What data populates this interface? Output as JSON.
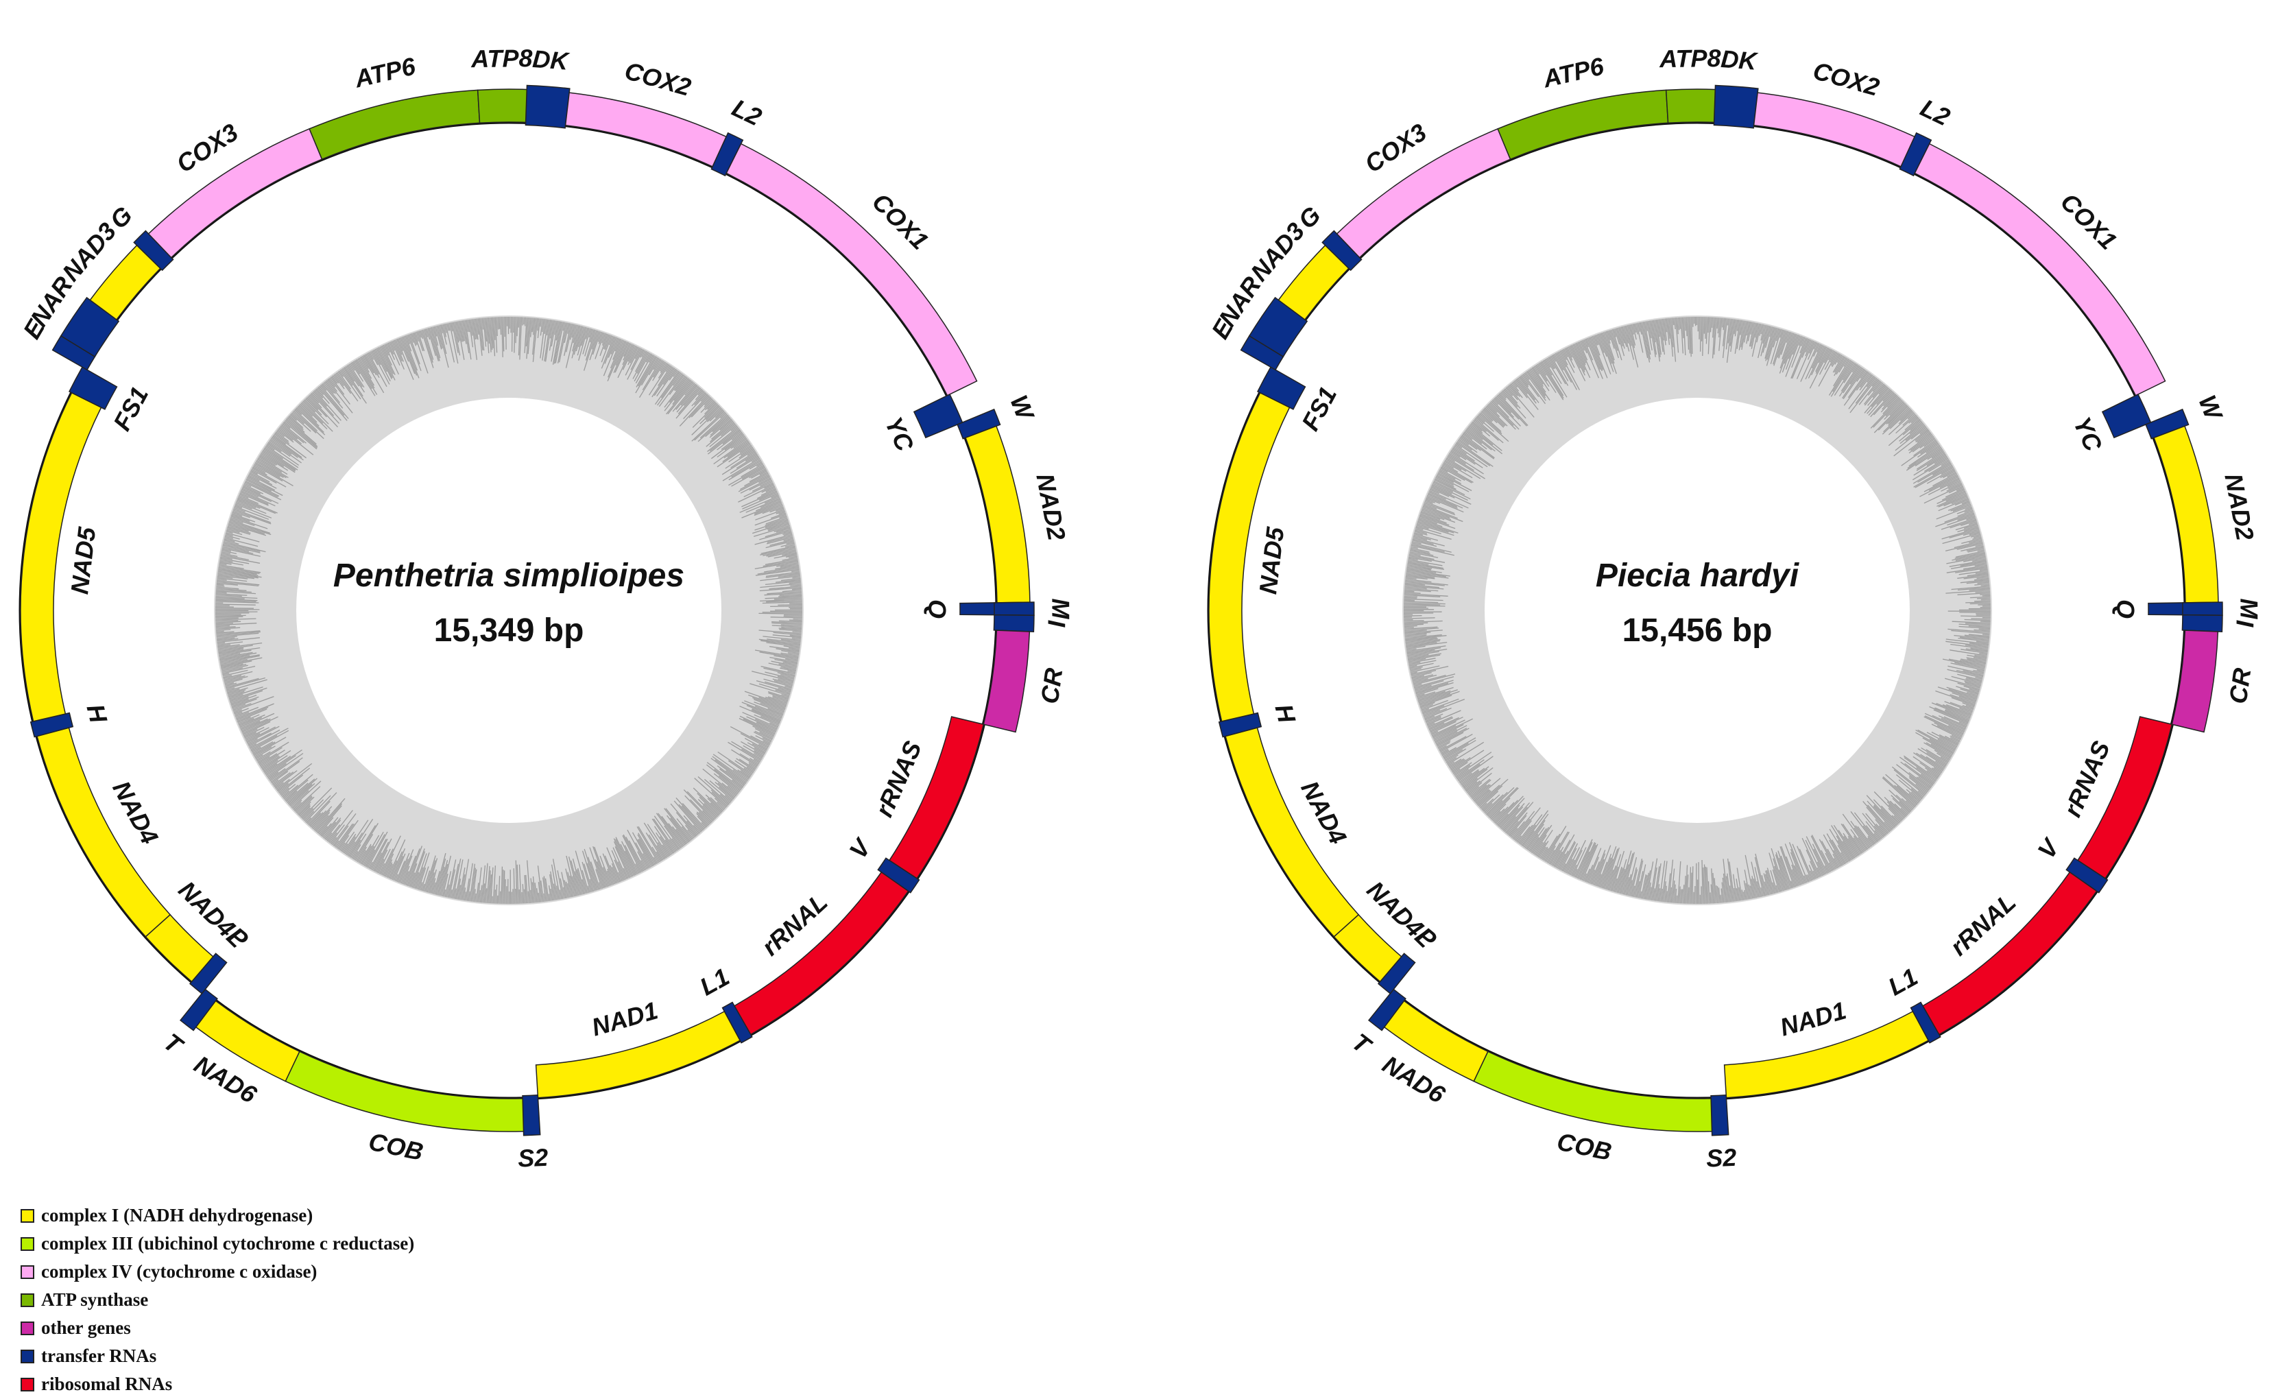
{
  "legend": [
    {
      "key": "c1",
      "label": "complex I (NADH dehydrogenase)",
      "color": "#ffee00"
    },
    {
      "key": "c3",
      "label": "complex III (ubichinol cytochrome c reductase)",
      "color": "#b8f000"
    },
    {
      "key": "c4",
      "label": "complex IV (cytochrome c oxidase)",
      "color": "#ffaaf2"
    },
    {
      "key": "atp",
      "label": "ATP synthase",
      "color": "#7ab800"
    },
    {
      "key": "other",
      "label": "other genes",
      "color": "#cc2aa6"
    },
    {
      "key": "trna",
      "label": "transfer RNAs",
      "color": "#0a2f8a"
    },
    {
      "key": "rrna",
      "label": "ribosomal RNAs",
      "color": "#ee0020"
    }
  ],
  "chart_data": {
    "type": "diagram",
    "description_free": true,
    "genomes": [
      {
        "id": "left",
        "species": "Penthetria  simplioipes",
        "length": "15,349 bp",
        "density": "a",
        "genes": [
          {
            "name": "DK",
            "type": "trna",
            "start": 0.0,
            "end": 0.013,
            "strand": "out",
            "label": "DK"
          },
          {
            "name": "COX2",
            "type": "c4",
            "start": 0.013,
            "end": 0.063,
            "strand": "out",
            "label": "COX2"
          },
          {
            "name": "L2",
            "type": "trna",
            "start": 0.063,
            "end": 0.068,
            "strand": "out",
            "label": "L2"
          },
          {
            "name": "COX1",
            "type": "c4",
            "start": 0.068,
            "end": 0.172,
            "strand": "out",
            "label": "COX1"
          },
          {
            "name": "YC",
            "type": "trna",
            "start": 0.172,
            "end": 0.182,
            "strand": "in",
            "label": "YC"
          },
          {
            "name": "W",
            "type": "trna",
            "start": 0.182,
            "end": 0.187,
            "strand": "out",
            "label": "W"
          },
          {
            "name": "NAD2",
            "type": "c1",
            "start": 0.187,
            "end": 0.242,
            "strand": "out",
            "label": "NAD2"
          },
          {
            "name": "Q",
            "type": "trna",
            "start": 0.242,
            "end": 0.246,
            "strand": "in",
            "label": "Q"
          },
          {
            "name": "M",
            "type": "trna",
            "start": 0.242,
            "end": 0.246,
            "strand": "out",
            "label": "M"
          },
          {
            "name": "I",
            "type": "trna",
            "start": 0.246,
            "end": 0.251,
            "strand": "out",
            "label": "I"
          },
          {
            "name": "CR",
            "type": "other",
            "start": 0.251,
            "end": 0.282,
            "strand": "out",
            "label": "CR"
          },
          {
            "name": "rRNAS",
            "type": "rrna",
            "start": 0.282,
            "end": 0.337,
            "strand": "in",
            "label": "rRNAS"
          },
          {
            "name": "V",
            "type": "trna",
            "start": 0.337,
            "end": 0.342,
            "strand": "in",
            "label": "V"
          },
          {
            "name": "rRNAL",
            "type": "rrna",
            "start": 0.342,
            "end": 0.412,
            "strand": "in",
            "label": "rRNAL"
          },
          {
            "name": "L1",
            "type": "trna",
            "start": 0.412,
            "end": 0.416,
            "strand": "in",
            "label": "L1"
          },
          {
            "name": "NAD1",
            "type": "c1",
            "start": 0.416,
            "end": 0.485,
            "strand": "in",
            "label": "NAD1"
          },
          {
            "name": "S2",
            "type": "trna",
            "start": 0.485,
            "end": 0.49,
            "strand": "out",
            "label": "S2"
          },
          {
            "name": "COB",
            "type": "c3",
            "start": 0.49,
            "end": 0.565,
            "strand": "out",
            "label": "COB"
          },
          {
            "name": "NAD6",
            "type": "c1",
            "start": 0.565,
            "end": 0.597,
            "strand": "out",
            "label": "NAD6"
          },
          {
            "name": "T",
            "type": "trna",
            "start": 0.597,
            "end": 0.602,
            "strand": "out",
            "label": "T"
          },
          {
            "name": "P",
            "type": "trna",
            "start": 0.602,
            "end": 0.607,
            "strand": "in",
            "label": "P"
          },
          {
            "name": "NAD4L",
            "type": "c1",
            "start": 0.607,
            "end": 0.628,
            "strand": "in",
            "label": "NAD4L"
          },
          {
            "name": "NAD4",
            "type": "c1",
            "start": 0.628,
            "end": 0.703,
            "strand": "in",
            "label": "NAD4"
          },
          {
            "name": "H",
            "type": "trna",
            "start": 0.703,
            "end": 0.708,
            "strand": "in",
            "label": "H"
          },
          {
            "name": "NAD5",
            "type": "c1",
            "start": 0.708,
            "end": 0.818,
            "strand": "in",
            "label": "NAD5"
          },
          {
            "name": "FS1",
            "type": "trna",
            "start": 0.818,
            "end": 0.827,
            "strand": "in",
            "label": "FS1"
          },
          {
            "name": "E",
            "type": "trna",
            "start": 0.827,
            "end": 0.832,
            "strand": "out",
            "label": "E"
          },
          {
            "name": "NAR",
            "type": "trna",
            "start": 0.832,
            "end": 0.846,
            "strand": "out",
            "label": "NAR"
          },
          {
            "name": "NAD3",
            "type": "c1",
            "start": 0.846,
            "end": 0.868,
            "strand": "out",
            "label": "NAD3"
          },
          {
            "name": "G",
            "type": "trna",
            "start": 0.868,
            "end": 0.873,
            "strand": "out",
            "label": "G"
          },
          {
            "name": "COX3",
            "type": "c4",
            "start": 0.873,
            "end": 0.932,
            "strand": "out",
            "label": "COX3"
          },
          {
            "name": "ATP6",
            "type": "atp",
            "start": 0.932,
            "end": 0.985,
            "strand": "out",
            "label": "ATP6"
          },
          {
            "name": "ATP8",
            "type": "atp",
            "start": 0.985,
            "end": 1.0,
            "strand": "out",
            "label": "ATP8"
          }
        ]
      },
      {
        "id": "right",
        "species": "Piecia  hardyi",
        "length": "15,456 bp",
        "density": "b",
        "genes": [
          {
            "name": "DK",
            "type": "trna",
            "start": 0.0,
            "end": 0.013,
            "strand": "out",
            "label": "DK"
          },
          {
            "name": "COX2",
            "type": "c4",
            "start": 0.013,
            "end": 0.063,
            "strand": "out",
            "label": "COX2"
          },
          {
            "name": "L2",
            "type": "trna",
            "start": 0.063,
            "end": 0.068,
            "strand": "out",
            "label": "L2"
          },
          {
            "name": "COX1",
            "type": "c4",
            "start": 0.068,
            "end": 0.172,
            "strand": "out",
            "label": "COX1"
          },
          {
            "name": "YC",
            "type": "trna",
            "start": 0.172,
            "end": 0.182,
            "strand": "in",
            "label": "YC"
          },
          {
            "name": "W",
            "type": "trna",
            "start": 0.182,
            "end": 0.187,
            "strand": "out",
            "label": "W"
          },
          {
            "name": "NAD2",
            "type": "c1",
            "start": 0.187,
            "end": 0.242,
            "strand": "out",
            "label": "NAD2"
          },
          {
            "name": "Q",
            "type": "trna",
            "start": 0.242,
            "end": 0.246,
            "strand": "in",
            "label": "Q"
          },
          {
            "name": "M",
            "type": "trna",
            "start": 0.242,
            "end": 0.246,
            "strand": "out",
            "label": "M"
          },
          {
            "name": "I",
            "type": "trna",
            "start": 0.246,
            "end": 0.251,
            "strand": "out",
            "label": "I"
          },
          {
            "name": "CR",
            "type": "other",
            "start": 0.251,
            "end": 0.282,
            "strand": "out",
            "label": "CR"
          },
          {
            "name": "rRNAS",
            "type": "rrna",
            "start": 0.282,
            "end": 0.337,
            "strand": "in",
            "label": "rRNAS"
          },
          {
            "name": "V",
            "type": "trna",
            "start": 0.337,
            "end": 0.342,
            "strand": "in",
            "label": "V"
          },
          {
            "name": "rRNAL",
            "type": "rrna",
            "start": 0.342,
            "end": 0.412,
            "strand": "in",
            "label": "rRNAL"
          },
          {
            "name": "L1",
            "type": "trna",
            "start": 0.412,
            "end": 0.416,
            "strand": "in",
            "label": "L1"
          },
          {
            "name": "NAD1",
            "type": "c1",
            "start": 0.416,
            "end": 0.485,
            "strand": "in",
            "label": "NAD1"
          },
          {
            "name": "S2",
            "type": "trna",
            "start": 0.485,
            "end": 0.49,
            "strand": "out",
            "label": "S2"
          },
          {
            "name": "COB",
            "type": "c3",
            "start": 0.49,
            "end": 0.565,
            "strand": "out",
            "label": "COB"
          },
          {
            "name": "NAD6",
            "type": "c1",
            "start": 0.565,
            "end": 0.597,
            "strand": "out",
            "label": "NAD6"
          },
          {
            "name": "T",
            "type": "trna",
            "start": 0.597,
            "end": 0.602,
            "strand": "out",
            "label": "T"
          },
          {
            "name": "P",
            "type": "trna",
            "start": 0.602,
            "end": 0.607,
            "strand": "in",
            "label": "P"
          },
          {
            "name": "NAD4L",
            "type": "c1",
            "start": 0.607,
            "end": 0.628,
            "strand": "in",
            "label": "NAD4L"
          },
          {
            "name": "NAD4",
            "type": "c1",
            "start": 0.628,
            "end": 0.703,
            "strand": "in",
            "label": "NAD4"
          },
          {
            "name": "H",
            "type": "trna",
            "start": 0.703,
            "end": 0.708,
            "strand": "in",
            "label": "H"
          },
          {
            "name": "NAD5",
            "type": "c1",
            "start": 0.708,
            "end": 0.818,
            "strand": "in",
            "label": "NAD5"
          },
          {
            "name": "FS1",
            "type": "trna",
            "start": 0.818,
            "end": 0.827,
            "strand": "in",
            "label": "FS1"
          },
          {
            "name": "E",
            "type": "trna",
            "start": 0.827,
            "end": 0.832,
            "strand": "out",
            "label": "E"
          },
          {
            "name": "NAR",
            "type": "trna",
            "start": 0.832,
            "end": 0.846,
            "strand": "out",
            "label": "NAR"
          },
          {
            "name": "NAD3",
            "type": "c1",
            "start": 0.846,
            "end": 0.868,
            "strand": "out",
            "label": "NAD3"
          },
          {
            "name": "G",
            "type": "trna",
            "start": 0.868,
            "end": 0.873,
            "strand": "out",
            "label": "G"
          },
          {
            "name": "COX3",
            "type": "c4",
            "start": 0.873,
            "end": 0.932,
            "strand": "out",
            "label": "COX3"
          },
          {
            "name": "ATP6",
            "type": "atp",
            "start": 0.932,
            "end": 0.985,
            "strand": "out",
            "label": "ATP6"
          },
          {
            "name": "ATP8",
            "type": "atp",
            "start": 0.985,
            "end": 1.0,
            "strand": "out",
            "label": "ATP8"
          }
        ]
      }
    ]
  }
}
